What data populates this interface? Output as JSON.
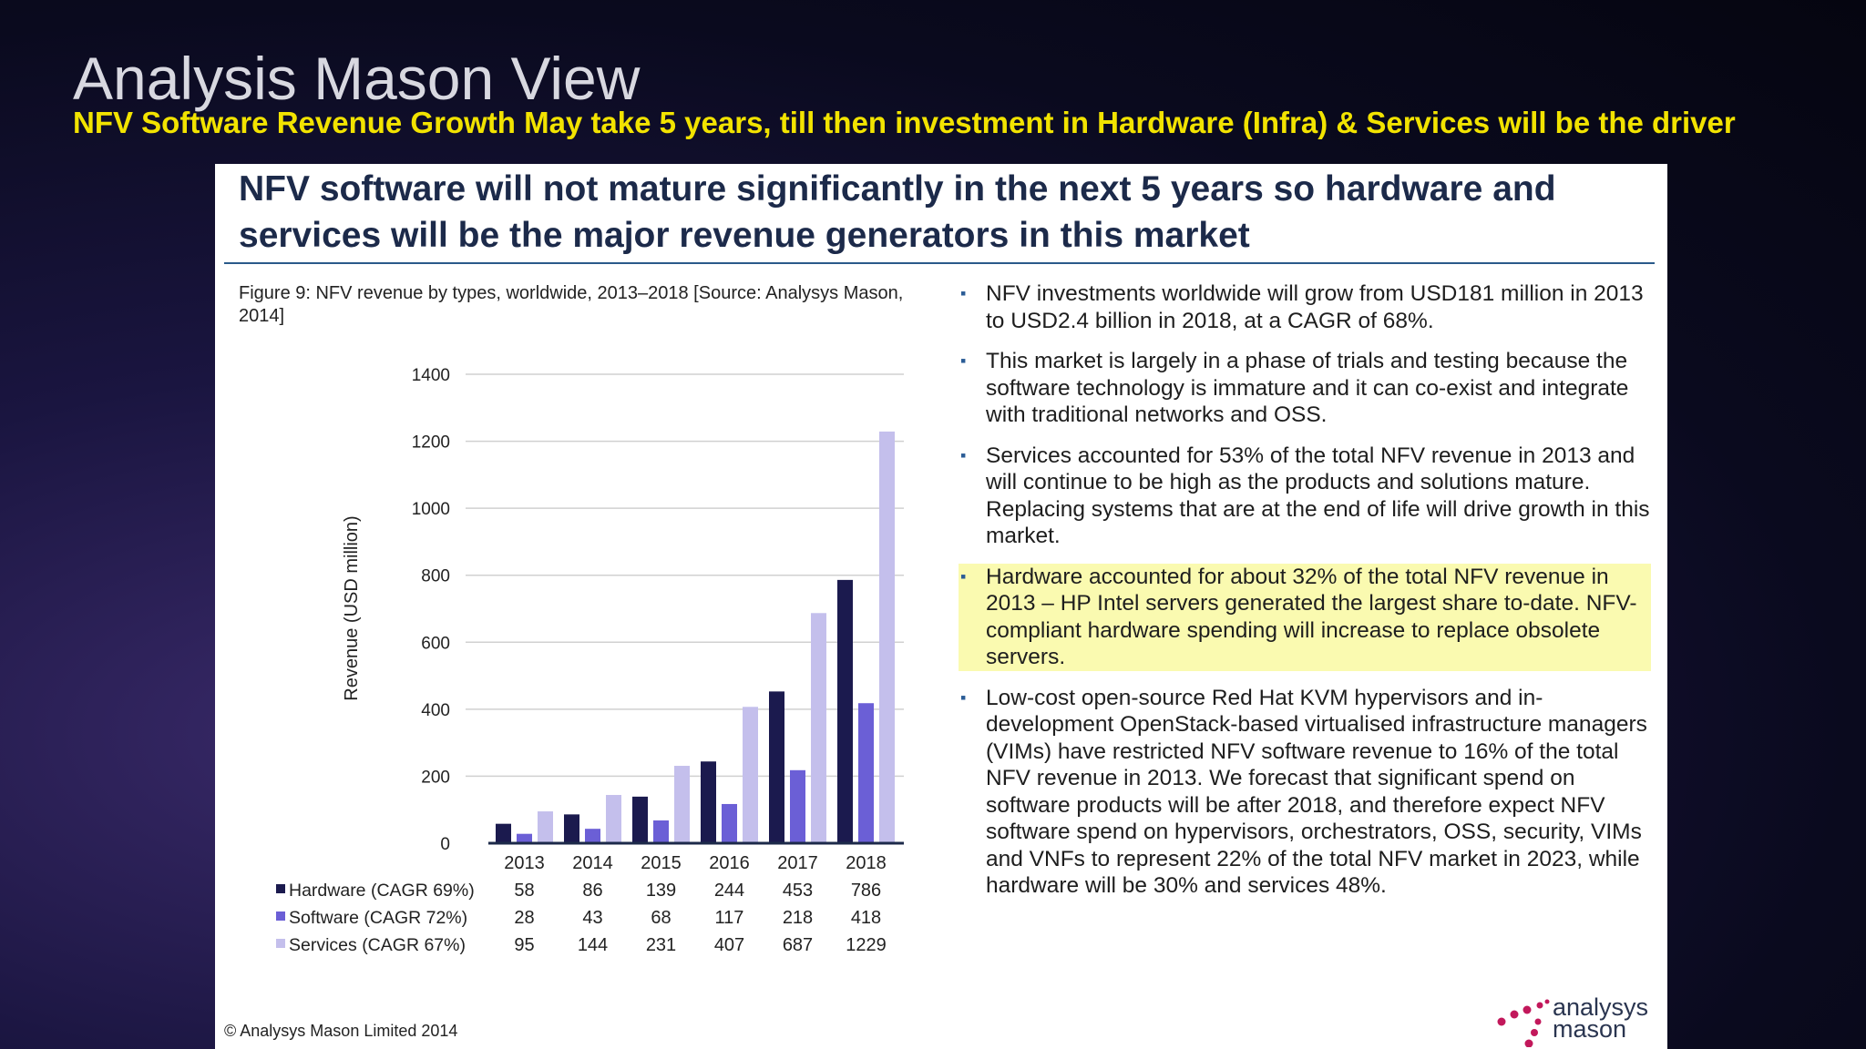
{
  "header": {
    "title": "Analysis Mason View",
    "subtitle": "NFV Software Revenue Growth May take 5 years, till then investment in Hardware (Infra) & Services will be the driver"
  },
  "panel": {
    "heading": "NFV software will not mature significantly in the next 5 years so hardware and services will be the major revenue generators in this market",
    "figure_caption": "Figure 9: NFV revenue by types, worldwide, 2013–2018 [Source: Analysys Mason, 2014]",
    "copyright": "© Analysys Mason Limited 2014",
    "logo_text_line1": "analysys",
    "logo_text_line2": "mason",
    "bullets": [
      {
        "text": "NFV investments worldwide will grow from USD181 million in 2013 to USD2.4 billion in 2018, at a CAGR of 68%.",
        "highlight": false
      },
      {
        "text": "This market is largely in a phase of trials and testing because the software technology is immature and it can co-exist and integrate with traditional networks and OSS.",
        "highlight": false
      },
      {
        "text": "Services accounted for 53% of the total NFV revenue in 2013 and will continue to be high as the products and solutions mature. Replacing systems that are at the end of life will drive growth in this market.",
        "highlight": false
      },
      {
        "text": "Hardware accounted for about 32% of the total NFV revenue in 2013 – HP Intel servers generated the largest share to-date. NFV-compliant hardware spending will increase to replace obsolete servers.",
        "highlight": true
      },
      {
        "text": "Low-cost open-source Red Hat KVM hypervisors and in-development OpenStack-based virtualised infrastructure managers (VIMs) have restricted NFV software revenue to 16% of the total NFV revenue in 2013. We forecast that significant spend on software products will be after 2018, and therefore expect NFV software spend on hypervisors, orchestrators, OSS, security, VIMs and VNFs to represent 22% of the total NFV market in 2023, while hardware will be 30% and services 48%.",
        "highlight": false
      }
    ]
  },
  "chart_data": {
    "type": "bar",
    "title": "",
    "ylabel": "Revenue (USD million)",
    "xlabel": "",
    "ylim": [
      0,
      1400
    ],
    "yticks": [
      0,
      200,
      400,
      600,
      800,
      1000,
      1200,
      1400
    ],
    "grid": true,
    "legend": "data-table-below",
    "categories": [
      "2013",
      "2014",
      "2015",
      "2016",
      "2017",
      "2018"
    ],
    "series": [
      {
        "name": "Hardware (CAGR 69%)",
        "color": "#1b1a4e",
        "values": [
          58,
          86,
          139,
          244,
          453,
          786
        ]
      },
      {
        "name": "Software (CAGR 72%)",
        "color": "#6b5fd6",
        "values": [
          28,
          43,
          68,
          117,
          218,
          418
        ]
      },
      {
        "name": "Services (CAGR 67%)",
        "color": "#c4bfec",
        "values": [
          95,
          144,
          231,
          407,
          687,
          1229
        ]
      }
    ]
  }
}
